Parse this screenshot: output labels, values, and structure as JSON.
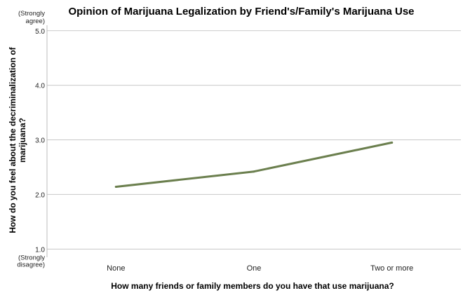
{
  "chart_data": {
    "type": "line",
    "title": "Opinion of Marijuana Legalization by Friend's/Family's Marijuana Use",
    "xlabel": "How many friends or family members do you have that use marijuana?",
    "ylabel_lines": [
      "How do you feel about the decriminalization of",
      "marijuana?"
    ],
    "categories": [
      "None",
      "One",
      "Two or more"
    ],
    "series": [
      {
        "values": [
          2.14,
          2.42,
          2.95
        ],
        "color": "#6b7f4e"
      }
    ],
    "yticks": [
      "1.0",
      "2.0",
      "3.0",
      "4.0",
      "5.0"
    ],
    "ytick_values": [
      1,
      2,
      3,
      4,
      5
    ],
    "ylim": [
      0.85,
      5.1
    ],
    "y_anchor_top": [
      "(Strongly",
      "agree)"
    ],
    "y_anchor_bottom": [
      "(Strongly",
      "disagree)"
    ],
    "grid": true
  }
}
